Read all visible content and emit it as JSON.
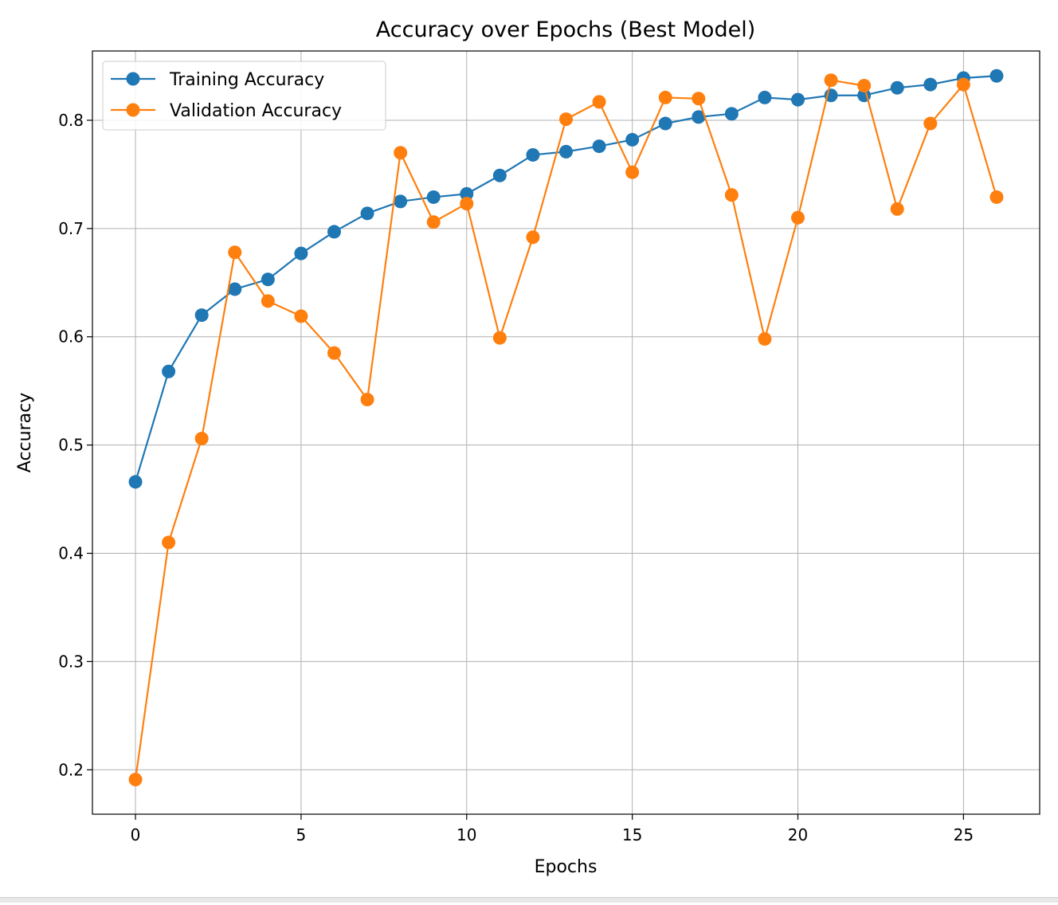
{
  "chart_data": {
    "type": "line",
    "title": "Accuracy over Epochs (Best Model)",
    "xlabel": "Epochs",
    "ylabel": "Accuracy",
    "xlim": [
      -1.3,
      27.3
    ],
    "ylim": [
      0.159,
      0.864
    ],
    "xticks": [
      0,
      5,
      10,
      15,
      20,
      25
    ],
    "yticks": [
      0.2,
      0.3,
      0.4,
      0.5,
      0.6,
      0.7,
      0.8
    ],
    "xtick_labels": [
      "0",
      "5",
      "10",
      "15",
      "20",
      "25"
    ],
    "ytick_labels": [
      "0.2",
      "0.3",
      "0.4",
      "0.5",
      "0.6",
      "0.7",
      "0.8"
    ],
    "grid": true,
    "legend_position": "top-left",
    "marker": "circle",
    "x": [
      0,
      1,
      2,
      3,
      4,
      5,
      6,
      7,
      8,
      9,
      10,
      11,
      12,
      13,
      14,
      15,
      16,
      17,
      18,
      19,
      20,
      21,
      22,
      23,
      24,
      25,
      26
    ],
    "series": [
      {
        "name": "Training Accuracy",
        "color": "#1f77b4",
        "values": [
          0.466,
          0.568,
          0.62,
          0.644,
          0.653,
          0.677,
          0.697,
          0.714,
          0.725,
          0.729,
          0.732,
          0.749,
          0.768,
          0.771,
          0.776,
          0.782,
          0.797,
          0.803,
          0.806,
          0.821,
          0.819,
          0.823,
          0.823,
          0.83,
          0.833,
          0.839,
          0.841
        ]
      },
      {
        "name": "Validation Accuracy",
        "color": "#ff7f0e",
        "values": [
          0.191,
          0.41,
          0.506,
          0.678,
          0.633,
          0.619,
          0.585,
          0.542,
          0.77,
          0.706,
          0.723,
          0.599,
          0.692,
          0.801,
          0.817,
          0.752,
          0.821,
          0.82,
          0.731,
          0.598,
          0.71,
          0.837,
          0.832,
          0.718,
          0.797,
          0.833,
          0.729
        ]
      }
    ]
  }
}
